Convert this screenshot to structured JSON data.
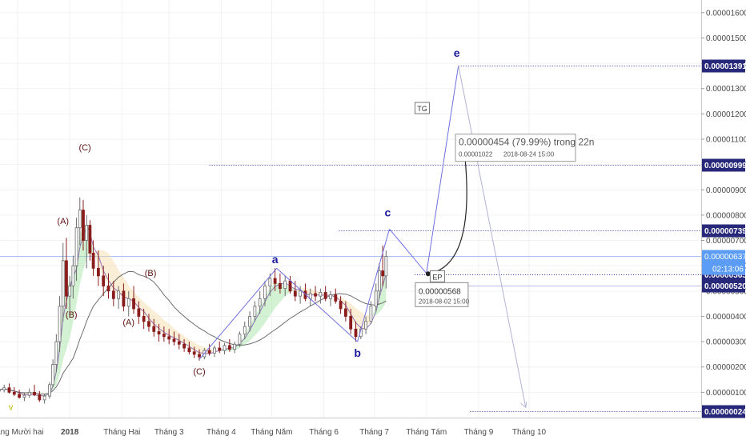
{
  "chart_data": {
    "type": "candlestick",
    "y_axis": {
      "position": "right",
      "range": [
        0,
        1.65e-05
      ],
      "ticks": [
        "0.00000100",
        "0.00000200",
        "0.00000300",
        "0.00000400",
        "0.00000500",
        "0.00000600",
        "0.00000700",
        "0.00000800",
        "0.00000900",
        "0.00001000",
        "0.00001100",
        "0.00001200",
        "0.00001300",
        "0.00001400",
        "0.00001500",
        "0.00001600"
      ]
    },
    "x_axis": {
      "ticks": [
        {
          "label": "háng Mười hai",
          "date": "2017-12-01",
          "bold": false
        },
        {
          "label": "2018",
          "date": "2018-01-01",
          "bold": true
        },
        {
          "label": "Tháng Hai",
          "date": "2018-02-01",
          "bold": false
        },
        {
          "label": "Tháng 3",
          "date": "2018-03-01",
          "bold": false
        },
        {
          "label": "Tháng 4",
          "date": "2018-04-01",
          "bold": false
        },
        {
          "label": "Tháng Năm",
          "date": "2018-05-01",
          "bold": false
        },
        {
          "label": "Tháng 6",
          "date": "2018-06-01",
          "bold": false
        },
        {
          "label": "Tháng 7",
          "date": "2018-07-01",
          "bold": false
        },
        {
          "label": "Tháng Tám",
          "date": "2018-08-01",
          "bold": false
        },
        {
          "label": "Tháng 9",
          "date": "2018-09-01",
          "bold": false
        },
        {
          "label": "Tháng 10",
          "date": "2018-10-01",
          "bold": false
        }
      ]
    },
    "price_levels": [
      {
        "label": "0.00001391",
        "value": 1.391e-05,
        "style": "dotted",
        "from_date": "2018-08-20"
      },
      {
        "label": "0.00000999",
        "value": 9.99e-06,
        "style": "dotted",
        "from_date": "2018-03-25"
      },
      {
        "label": "0.00000739",
        "value": 7.39e-06,
        "style": "dotted",
        "from_date": "2018-06-10"
      },
      {
        "label": "0.00000565",
        "value": 5.65e-06,
        "style": "dotted",
        "from_date": "2018-07-25"
      },
      {
        "label": "0.00000520",
        "value": 5.2e-06,
        "style": "solid-light",
        "from_date": "2018-07-25"
      },
      {
        "label": "0.00000024",
        "value": 2.4e-07,
        "style": "dotted",
        "from_date": "2018-08-27"
      }
    ],
    "current_price": {
      "label": "0.00000637",
      "value": 6.37e-06,
      "countdown": "02:13:06",
      "color": "#5b9cf6"
    },
    "wave_labels": [
      {
        "text": "(C)",
        "date": "2018-01-10",
        "value": 1.055e-05,
        "color": "#5c0f0f"
      },
      {
        "text": "(A)",
        "date": "2017-12-28",
        "value": 7.65e-06,
        "color": "#5c0f0f"
      },
      {
        "text": "(B)",
        "date": "2018-01-02",
        "value": 3.95e-06,
        "color": "#5c0f0f"
      },
      {
        "text": "(B)",
        "date": "2018-02-18",
        "value": 5.6e-06,
        "color": "#5c0f0f"
      },
      {
        "text": "(A)",
        "date": "2018-02-05",
        "value": 3.65e-06,
        "color": "#5c0f0f"
      },
      {
        "text": "(C)",
        "date": "2018-03-19",
        "value": 1.7e-06,
        "color": "#5c0f0f"
      },
      {
        "text": "a",
        "date": "2018-05-03",
        "value": 6.1e-06,
        "color": "#1a1a9c"
      },
      {
        "text": "b",
        "date": "2018-06-21",
        "value": 2.4e-06,
        "color": "#1a1a9c"
      },
      {
        "text": "c",
        "date": "2018-07-09",
        "value": 7.95e-06,
        "color": "#1a1a9c"
      },
      {
        "text": "e",
        "date": "2018-08-19",
        "value": 1.425e-05,
        "color": "#1a1a9c"
      },
      {
        "text": "v",
        "date": "2017-11-27",
        "value": 3e-07,
        "color": "#b9b900"
      }
    ],
    "wave_path": [
      {
        "date": "2018-03-19",
        "value": 2.3e-06
      },
      {
        "date": "2018-05-04",
        "value": 5.9e-06
      },
      {
        "date": "2018-06-21",
        "value": 3e-06
      },
      {
        "date": "2018-07-10",
        "value": 7.45e-06
      },
      {
        "date": "2018-08-01",
        "value": 5.7e-06
      },
      {
        "date": "2018-08-20",
        "value": 1.391e-05
      },
      {
        "date": "2018-09-29",
        "value": 4e-07
      }
    ],
    "projection": {
      "box_text": "0.00000454 (79.99%) trong 22n",
      "box_sub_price": "0.00001022",
      "box_sub_date": "2018-08-24  15:00",
      "start_label": "0.00000568",
      "start_date_text": "2018-08-02 15:00",
      "start": {
        "date": "2018-08-02",
        "value": 5.68e-06
      },
      "end": {
        "date": "2018-08-24",
        "value": 1.022e-05
      }
    },
    "tags": [
      {
        "text": "TG",
        "date": "2018-07-29",
        "value": 1.22e-05
      },
      {
        "text": "EP",
        "date": "2018-08-07",
        "value": 5.55e-06
      }
    ],
    "candles": [
      {
        "d": "2017-11-20",
        "o": 1.05e-06,
        "h": 1.25e-06,
        "l": 9.5e-07,
        "c": 1.1e-06
      },
      {
        "d": "2017-11-23",
        "o": 1.1e-06,
        "h": 1.3e-06,
        "l": 1e-06,
        "c": 1.18e-06
      },
      {
        "d": "2017-11-26",
        "o": 1.18e-06,
        "h": 1.35e-06,
        "l": 9.5e-07,
        "c": 1e-06
      },
      {
        "d": "2017-11-29",
        "o": 1e-06,
        "h": 1.2e-06,
        "l": 8.5e-07,
        "c": 9.2e-07
      },
      {
        "d": "2017-12-02",
        "o": 9.2e-07,
        "h": 1.1e-06,
        "l": 7.5e-07,
        "c": 8e-07
      },
      {
        "d": "2017-12-05",
        "o": 8e-07,
        "h": 1e-06,
        "l": 6.5e-07,
        "c": 8.8e-07
      },
      {
        "d": "2017-12-08",
        "o": 8.8e-07,
        "h": 1.15e-06,
        "l": 7.8e-07,
        "c": 1e-06
      },
      {
        "d": "2017-12-11",
        "o": 1e-06,
        "h": 1.3e-06,
        "l": 8.5e-07,
        "c": 9e-07
      },
      {
        "d": "2017-12-14",
        "o": 9e-07,
        "h": 1.05e-06,
        "l": 6.2e-07,
        "c": 7e-07
      },
      {
        "d": "2017-12-17",
        "o": 7e-07,
        "h": 9.5e-07,
        "l": 5.5e-07,
        "c": 8.5e-07
      },
      {
        "d": "2017-12-20",
        "o": 8.5e-07,
        "h": 1.4e-06,
        "l": 7.5e-07,
        "c": 1.3e-06
      },
      {
        "d": "2017-12-22",
        "o": 1.3e-06,
        "h": 2.3e-06,
        "l": 1.2e-06,
        "c": 2.1e-06
      },
      {
        "d": "2017-12-24",
        "o": 2.1e-06,
        "h": 3.3e-06,
        "l": 1.8e-06,
        "c": 3e-06
      },
      {
        "d": "2017-12-26",
        "o": 3e-06,
        "h": 4.8e-06,
        "l": 2.6e-06,
        "c": 4.4e-06
      },
      {
        "d": "2017-12-28",
        "o": 4.4e-06,
        "h": 6.9e-06,
        "l": 3.8e-06,
        "c": 6.2e-06
      },
      {
        "d": "2017-12-30",
        "o": 6.2e-06,
        "h": 7.1e-06,
        "l": 4.3e-06,
        "c": 4.8e-06
      },
      {
        "d": "2018-01-01",
        "o": 4.8e-06,
        "h": 5.6e-06,
        "l": 4e-06,
        "c": 5.2e-06
      },
      {
        "d": "2018-01-03",
        "o": 5.2e-06,
        "h": 6.4e-06,
        "l": 4.7e-06,
        "c": 6e-06
      },
      {
        "d": "2018-01-05",
        "o": 6e-06,
        "h": 7.9e-06,
        "l": 5.4e-06,
        "c": 7.5e-06
      },
      {
        "d": "2018-01-07",
        "o": 7.5e-06,
        "h": 8.7e-06,
        "l": 6.8e-06,
        "c": 8.2e-06
      },
      {
        "d": "2018-01-09",
        "o": 8.2e-06,
        "h": 8.6e-06,
        "l": 6.6e-06,
        "c": 7e-06
      },
      {
        "d": "2018-01-11",
        "o": 7e-06,
        "h": 8e-06,
        "l": 5.9e-06,
        "c": 7.6e-06
      },
      {
        "d": "2018-01-13",
        "o": 7.6e-06,
        "h": 7.8e-06,
        "l": 6.2e-06,
        "c": 6.5e-06
      },
      {
        "d": "2018-01-15",
        "o": 6.5e-06,
        "h": 7e-06,
        "l": 5.6e-06,
        "c": 5.9e-06
      },
      {
        "d": "2018-01-18",
        "o": 5.9e-06,
        "h": 6.6e-06,
        "l": 5.2e-06,
        "c": 5.6e-06
      },
      {
        "d": "2018-01-21",
        "o": 5.6e-06,
        "h": 6e-06,
        "l": 4.8e-06,
        "c": 5.2e-06
      },
      {
        "d": "2018-01-24",
        "o": 5.2e-06,
        "h": 5.7e-06,
        "l": 4.7e-06,
        "c": 5e-06
      },
      {
        "d": "2018-01-27",
        "o": 5e-06,
        "h": 5.4e-06,
        "l": 4.4e-06,
        "c": 4.7e-06
      },
      {
        "d": "2018-01-30",
        "o": 4.7e-06,
        "h": 5.2e-06,
        "l": 4.3e-06,
        "c": 5e-06
      },
      {
        "d": "2018-02-02",
        "o": 5e-06,
        "h": 5.3e-06,
        "l": 4.2e-06,
        "c": 4.4e-06
      },
      {
        "d": "2018-02-05",
        "o": 4.4e-06,
        "h": 5e-06,
        "l": 4e-06,
        "c": 4.7e-06
      },
      {
        "d": "2018-02-08",
        "o": 4.7e-06,
        "h": 5.2e-06,
        "l": 4.1e-06,
        "c": 4.3e-06
      },
      {
        "d": "2018-02-11",
        "o": 4.3e-06,
        "h": 4.6e-06,
        "l": 3.7e-06,
        "c": 4e-06
      },
      {
        "d": "2018-02-14",
        "o": 4e-06,
        "h": 4.3e-06,
        "l": 3.5e-06,
        "c": 3.8e-06
      },
      {
        "d": "2018-02-17",
        "o": 3.8e-06,
        "h": 4.1e-06,
        "l": 3.4e-06,
        "c": 3.6e-06
      },
      {
        "d": "2018-02-20",
        "o": 3.6e-06,
        "h": 3.9e-06,
        "l": 3.2e-06,
        "c": 3.4e-06
      },
      {
        "d": "2018-02-23",
        "o": 3.4e-06,
        "h": 3.7e-06,
        "l": 3e-06,
        "c": 3.3e-06
      },
      {
        "d": "2018-02-26",
        "o": 3.3e-06,
        "h": 3.6e-06,
        "l": 3e-06,
        "c": 3.2e-06
      },
      {
        "d": "2018-03-01",
        "o": 3.2e-06,
        "h": 3.5e-06,
        "l": 2.9e-06,
        "c": 3.1e-06
      },
      {
        "d": "2018-03-04",
        "o": 3.1e-06,
        "h": 3.4e-06,
        "l": 2.85e-06,
        "c": 3e-06
      },
      {
        "d": "2018-03-07",
        "o": 3e-06,
        "h": 3.3e-06,
        "l": 2.7e-06,
        "c": 2.9e-06
      },
      {
        "d": "2018-03-10",
        "o": 2.9e-06,
        "h": 3.1e-06,
        "l": 2.6e-06,
        "c": 2.75e-06
      },
      {
        "d": "2018-03-13",
        "o": 2.75e-06,
        "h": 3e-06,
        "l": 2.5e-06,
        "c": 2.6e-06
      },
      {
        "d": "2018-03-16",
        "o": 2.6e-06,
        "h": 2.8e-06,
        "l": 2.35e-06,
        "c": 2.5e-06
      },
      {
        "d": "2018-03-19",
        "o": 2.5e-06,
        "h": 2.7e-06,
        "l": 2.25e-06,
        "c": 2.4e-06
      },
      {
        "d": "2018-03-22",
        "o": 2.4e-06,
        "h": 2.75e-06,
        "l": 2.3e-06,
        "c": 2.65e-06
      },
      {
        "d": "2018-03-25",
        "o": 2.65e-06,
        "h": 2.9e-06,
        "l": 2.45e-06,
        "c": 2.55e-06
      },
      {
        "d": "2018-03-28",
        "o": 2.55e-06,
        "h": 2.85e-06,
        "l": 2.4e-06,
        "c": 2.75e-06
      },
      {
        "d": "2018-03-31",
        "o": 2.75e-06,
        "h": 3e-06,
        "l": 2.55e-06,
        "c": 2.65e-06
      },
      {
        "d": "2018-04-03",
        "o": 2.65e-06,
        "h": 2.95e-06,
        "l": 2.5e-06,
        "c": 2.85e-06
      },
      {
        "d": "2018-04-06",
        "o": 2.85e-06,
        "h": 3.1e-06,
        "l": 2.6e-06,
        "c": 2.7e-06
      },
      {
        "d": "2018-04-09",
        "o": 2.7e-06,
        "h": 3e-06,
        "l": 2.55e-06,
        "c": 2.9e-06
      },
      {
        "d": "2018-04-12",
        "o": 2.9e-06,
        "h": 3.4e-06,
        "l": 2.8e-06,
        "c": 3.3e-06
      },
      {
        "d": "2018-04-15",
        "o": 3.3e-06,
        "h": 3.8e-06,
        "l": 3.1e-06,
        "c": 3.6e-06
      },
      {
        "d": "2018-04-18",
        "o": 3.6e-06,
        "h": 4.2e-06,
        "l": 3.4e-06,
        "c": 4e-06
      },
      {
        "d": "2018-04-21",
        "o": 4e-06,
        "h": 4.6e-06,
        "l": 3.8e-06,
        "c": 4.4e-06
      },
      {
        "d": "2018-04-24",
        "o": 4.4e-06,
        "h": 5e-06,
        "l": 4.1e-06,
        "c": 4.7e-06
      },
      {
        "d": "2018-04-27",
        "o": 4.7e-06,
        "h": 5.4e-06,
        "l": 4.4e-06,
        "c": 5.2e-06
      },
      {
        "d": "2018-04-30",
        "o": 5.2e-06,
        "h": 5.7e-06,
        "l": 4.8e-06,
        "c": 5.5e-06
      },
      {
        "d": "2018-05-03",
        "o": 5.5e-06,
        "h": 5.9e-06,
        "l": 5e-06,
        "c": 5.3e-06
      },
      {
        "d": "2018-05-06",
        "o": 5.3e-06,
        "h": 5.7e-06,
        "l": 4.9e-06,
        "c": 5.1e-06
      },
      {
        "d": "2018-05-09",
        "o": 5.1e-06,
        "h": 5.6e-06,
        "l": 4.8e-06,
        "c": 5.4e-06
      },
      {
        "d": "2018-05-12",
        "o": 5.4e-06,
        "h": 5.6e-06,
        "l": 4.9e-06,
        "c": 5e-06
      },
      {
        "d": "2018-05-15",
        "o": 5e-06,
        "h": 5.4e-06,
        "l": 4.6e-06,
        "c": 4.8e-06
      },
      {
        "d": "2018-05-18",
        "o": 4.8e-06,
        "h": 5.2e-06,
        "l": 4.5e-06,
        "c": 5e-06
      },
      {
        "d": "2018-05-21",
        "o": 5e-06,
        "h": 5.3e-06,
        "l": 4.6e-06,
        "c": 4.7e-06
      },
      {
        "d": "2018-05-24",
        "o": 4.7e-06,
        "h": 5.1e-06,
        "l": 4.4e-06,
        "c": 4.9e-06
      },
      {
        "d": "2018-05-27",
        "o": 4.9e-06,
        "h": 5.2e-06,
        "l": 4.6e-06,
        "c": 4.8e-06
      },
      {
        "d": "2018-05-30",
        "o": 4.8e-06,
        "h": 5.1e-06,
        "l": 4.5e-06,
        "c": 4.95e-06
      },
      {
        "d": "2018-06-02",
        "o": 4.95e-06,
        "h": 5.2e-06,
        "l": 4.6e-06,
        "c": 4.7e-06
      },
      {
        "d": "2018-06-05",
        "o": 4.7e-06,
        "h": 5e-06,
        "l": 4.4e-06,
        "c": 4.85e-06
      },
      {
        "d": "2018-06-08",
        "o": 4.85e-06,
        "h": 5.1e-06,
        "l": 4.5e-06,
        "c": 4.6e-06
      },
      {
        "d": "2018-06-11",
        "o": 4.6e-06,
        "h": 4.8e-06,
        "l": 4.1e-06,
        "c": 4.3e-06
      },
      {
        "d": "2018-06-14",
        "o": 4.3e-06,
        "h": 4.6e-06,
        "l": 3.8e-06,
        "c": 4e-06
      },
      {
        "d": "2018-06-17",
        "o": 4e-06,
        "h": 4.3e-06,
        "l": 3.3e-06,
        "c": 3.5e-06
      },
      {
        "d": "2018-06-20",
        "o": 3.5e-06,
        "h": 3.8e-06,
        "l": 3e-06,
        "c": 3.2e-06
      },
      {
        "d": "2018-06-23",
        "o": 3.2e-06,
        "h": 3.6e-06,
        "l": 3.1e-06,
        "c": 3.5e-06
      },
      {
        "d": "2018-06-26",
        "o": 3.5e-06,
        "h": 4e-06,
        "l": 3.3e-06,
        "c": 3.8e-06
      },
      {
        "d": "2018-06-29",
        "o": 3.8e-06,
        "h": 4.6e-06,
        "l": 3.7e-06,
        "c": 4.4e-06
      },
      {
        "d": "2018-07-02",
        "o": 4.4e-06,
        "h": 5.3e-06,
        "l": 4.2e-06,
        "c": 5e-06
      },
      {
        "d": "2018-07-04",
        "o": 5e-06,
        "h": 6.1e-06,
        "l": 4.7e-06,
        "c": 5.8e-06
      },
      {
        "d": "2018-07-06",
        "o": 5.8e-06,
        "h": 6.8e-06,
        "l": 5.2e-06,
        "c": 5.6e-06
      },
      {
        "d": "2018-07-08",
        "o": 5.6e-06,
        "h": 6.6e-06,
        "l": 5.1e-06,
        "c": 6.37e-06
      }
    ]
  }
}
